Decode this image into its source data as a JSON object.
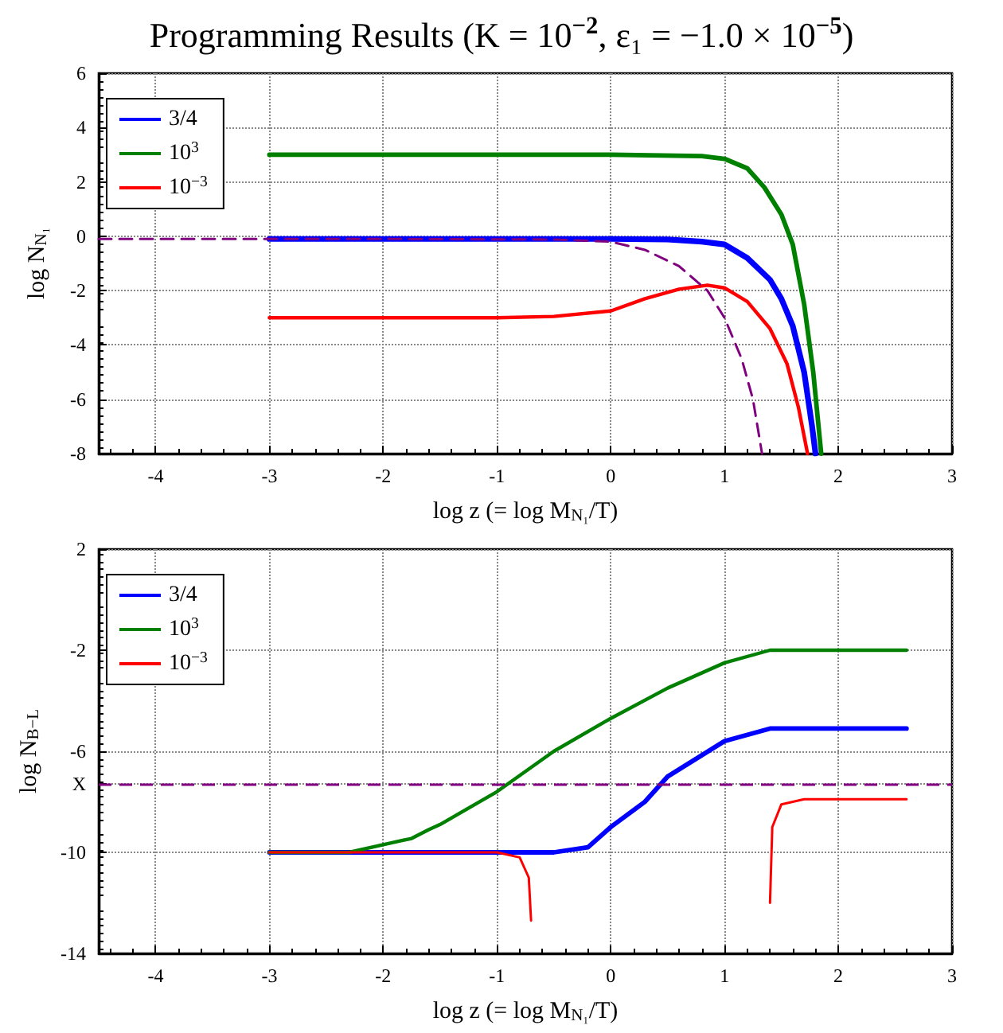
{
  "chart_data": [
    {
      "type": "line",
      "title": "Programming Results (K = 10$^{−2}$, ε₁ = −1.0 × 10$^{−5}$)",
      "xlabel": "log z (= log M$_{N₁}$/T)",
      "ylabel": "log N$_{N₁}$",
      "xlim": [
        -4.5,
        3
      ],
      "xticks": [
        -4,
        -3,
        -2,
        -1,
        0,
        1,
        2,
        3
      ],
      "ylim": [
        -8,
        6
      ],
      "yticks": [
        -8,
        -6,
        -4,
        -2,
        0,
        2,
        4,
        6
      ],
      "grid": true,
      "legend": "top left",
      "marker": "none",
      "line_style": "solid",
      "series": [
        {
          "name": "3/4",
          "color": "#0000ff",
          "x": [
            -3,
            -1,
            0,
            0.5,
            0.8,
            1,
            1.2,
            1.4,
            1.5,
            1.6,
            1.7,
            1.77,
            1.8
          ],
          "values": [
            -0.1,
            -0.1,
            -0.1,
            -0.12,
            -0.2,
            -0.3,
            -0.8,
            -1.6,
            -2.3,
            -3.3,
            -5.0,
            -7.0,
            -8.0
          ]
        },
        {
          "name": "10$^{3}$",
          "color": "#008000",
          "x": [
            -3,
            0,
            0.8,
            1.0,
            1.2,
            1.35,
            1.5,
            1.6,
            1.7,
            1.78,
            1.85
          ],
          "values": [
            3,
            3,
            2.95,
            2.85,
            2.5,
            1.8,
            0.8,
            -0.3,
            -2.5,
            -5.0,
            -8.0
          ]
        },
        {
          "name": "10$^{−3}$",
          "color": "#ff0000",
          "x": [
            -3,
            -1,
            -0.5,
            0,
            0.3,
            0.6,
            0.85,
            1.0,
            1.2,
            1.4,
            1.55,
            1.65,
            1.73
          ],
          "values": [
            -3,
            -3,
            -2.95,
            -2.75,
            -2.3,
            -1.95,
            -1.8,
            -1.9,
            -2.4,
            -3.4,
            -4.7,
            -6.3,
            -8.0
          ]
        },
        {
          "color": "#800080",
          "line_style": "dashed",
          "x": [
            -4.5,
            -2,
            -0.5,
            0,
            0.3,
            0.6,
            0.85,
            1.0,
            1.15,
            1.25,
            1.33
          ],
          "values": [
            -0.1,
            -0.1,
            -0.12,
            -0.2,
            -0.5,
            -1.1,
            -2.0,
            -3.0,
            -4.5,
            -6.0,
            -8.0
          ]
        }
      ]
    },
    {
      "type": "line",
      "xlabel": "log z (= log M$_{N₁}$/T)",
      "ylabel": "log N$_{B−L}$",
      "xlim": [
        -4.5,
        3
      ],
      "xticks": [
        -4,
        -3,
        -2,
        -1,
        0,
        1,
        2,
        3
      ],
      "ylim": [
        -14,
        2
      ],
      "yticks": [
        -14,
        -10,
        -6,
        {
          "value": -7.3,
          "label": "X"
        },
        -2,
        2
      ],
      "grid": true,
      "legend": "top left",
      "marker": "none",
      "line_style": "solid",
      "ref_lines": [
        {
          "axis": "y",
          "value": -7.3,
          "color": "#800080",
          "line_style": "dashed"
        }
      ],
      "series": [
        {
          "name": "3/4",
          "color": "#0000ff",
          "x": [
            -3,
            -0.5,
            -0.2,
            0,
            0.3,
            0.5,
            1.0,
            1.4,
            2.6
          ],
          "values": [
            -10,
            -10,
            -9.8,
            -9.0,
            -8.0,
            -7.0,
            -5.6,
            -5.1,
            -5.1
          ]
        },
        {
          "name": "10$^{3}$",
          "color": "#008000",
          "x": [
            -3,
            -2.3,
            -2,
            -1.75,
            -1.6,
            -1.5,
            -1,
            -0.5,
            0,
            0.5,
            1,
            1.4,
            2.6
          ],
          "values": [
            -10,
            -10,
            -9.7,
            -9.45,
            -9.1,
            -8.9,
            -7.6,
            -6.0,
            -4.7,
            -3.5,
            -2.5,
            -2.0,
            -2.0
          ]
        },
        {
          "name": "10$^{−3}$",
          "color": "#ff0000",
          "x": [
            -3,
            -1,
            -0.8,
            -0.72,
            -0.7,
            0,
            1.4,
            1.42,
            1.5,
            1.7,
            2.6
          ],
          "values": [
            -10,
            -10,
            -10.2,
            -11,
            -12.7,
            null,
            -12.0,
            -9.0,
            -8.1,
            -7.9,
            -7.9
          ]
        }
      ]
    }
  ]
}
